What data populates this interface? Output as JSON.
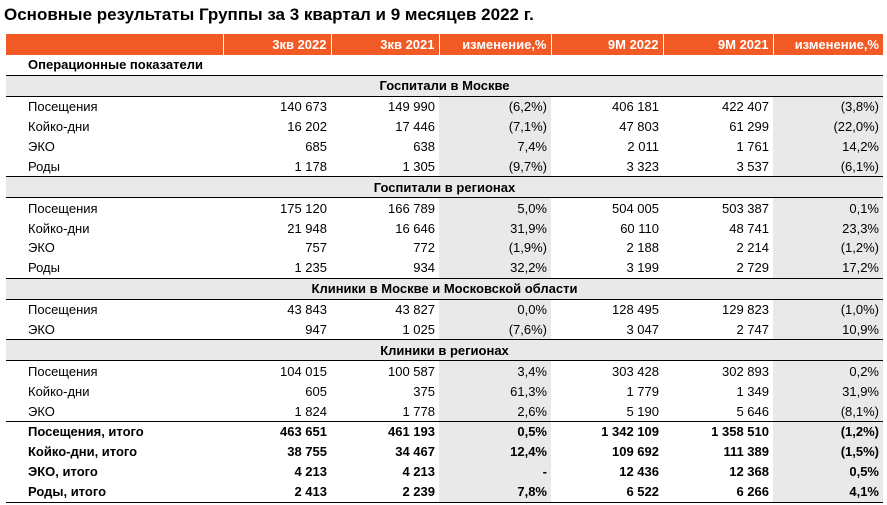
{
  "title": "Основные результаты Группы за 3 квартал и 9 месяцев 2022 г.",
  "columns": [
    "",
    "3кв 2022",
    "3кв 2021",
    "изменение,%",
    "9М 2022",
    "9М 2021",
    "изменение,%"
  ],
  "rows": [
    {
      "kind": "opheader",
      "label": "Операционные показатели"
    },
    {
      "kind": "section",
      "label": "Госпитали в Москве"
    },
    {
      "kind": "data",
      "cells": [
        "Посещения",
        "140 673",
        "149 990",
        "(6,2%)",
        "406 181",
        "422 407",
        "(3,8%)"
      ]
    },
    {
      "kind": "data",
      "cells": [
        "Койко-дни",
        "16 202",
        "17 446",
        "(7,1%)",
        "47 803",
        "61 299",
        "(22,0%)"
      ]
    },
    {
      "kind": "data",
      "cells": [
        "ЭКО",
        "685",
        "638",
        "7,4%",
        "2 011",
        "1 761",
        "14,2%"
      ]
    },
    {
      "kind": "data",
      "cells": [
        "Роды",
        "1 178",
        "1 305",
        "(9,7%)",
        "3 323",
        "3 537",
        "(6,1%)"
      ]
    },
    {
      "kind": "section",
      "label": "Госпитали в регионах"
    },
    {
      "kind": "data",
      "cells": [
        "Посещения",
        "175 120",
        "166 789",
        "5,0%",
        "504 005",
        "503 387",
        "0,1%"
      ]
    },
    {
      "kind": "data",
      "cells": [
        "Койко-дни",
        "21 948",
        "16 646",
        "31,9%",
        "60 110",
        "48 741",
        "23,3%"
      ]
    },
    {
      "kind": "data",
      "cells": [
        "ЭКО",
        "757",
        "772",
        "(1,9%)",
        "2 188",
        "2 214",
        "(1,2%)"
      ]
    },
    {
      "kind": "data",
      "cells": [
        "Роды",
        "1 235",
        "934",
        "32,2%",
        "3 199",
        "2 729",
        "17,2%"
      ]
    },
    {
      "kind": "section",
      "label": "Клиники в Москве и Московской области"
    },
    {
      "kind": "data",
      "cells": [
        "Посещения",
        "43 843",
        "43 827",
        "0,0%",
        "128 495",
        "129 823",
        "(1,0%)"
      ]
    },
    {
      "kind": "data",
      "cells": [
        "ЭКО",
        "947",
        "1 025",
        "(7,6%)",
        "3 047",
        "2 747",
        "10,9%"
      ]
    },
    {
      "kind": "section",
      "label": "Клиники в регионах"
    },
    {
      "kind": "data",
      "cells": [
        "Посещения",
        "104 015",
        "100 587",
        "3,4%",
        "303 428",
        "302 893",
        "0,2%"
      ]
    },
    {
      "kind": "data",
      "cells": [
        "Койко-дни",
        "605",
        "375",
        "61,3%",
        "1 779",
        "1 349",
        "31,9%"
      ]
    },
    {
      "kind": "data",
      "cells": [
        "ЭКО",
        "1 824",
        "1 778",
        "2,6%",
        "5 190",
        "5 646",
        "(8,1%)"
      ]
    },
    {
      "kind": "total",
      "cells": [
        "Посещения, итого",
        "463 651",
        "461 193",
        "0,5%",
        "1 342 109",
        "1 358 510",
        "(1,2%)"
      ]
    },
    {
      "kind": "total",
      "cells": [
        "Койко-дни, итого",
        "38 755",
        "34 467",
        "12,4%",
        "109 692",
        "111 389",
        "(1,5%)"
      ]
    },
    {
      "kind": "total",
      "cells": [
        "ЭКО, итого",
        "4 213",
        "4 213",
        "-",
        "12 436",
        "12 368",
        "0,5%"
      ]
    },
    {
      "kind": "total",
      "cells": [
        "Роды, итого",
        "2 413",
        "2 239",
        "7,8%",
        "6 522",
        "6 266",
        "4,1%"
      ]
    }
  ],
  "colors": {
    "header_bg": "#f15a24",
    "header_text": "#ffffff",
    "shade": "#e9e9e9"
  }
}
